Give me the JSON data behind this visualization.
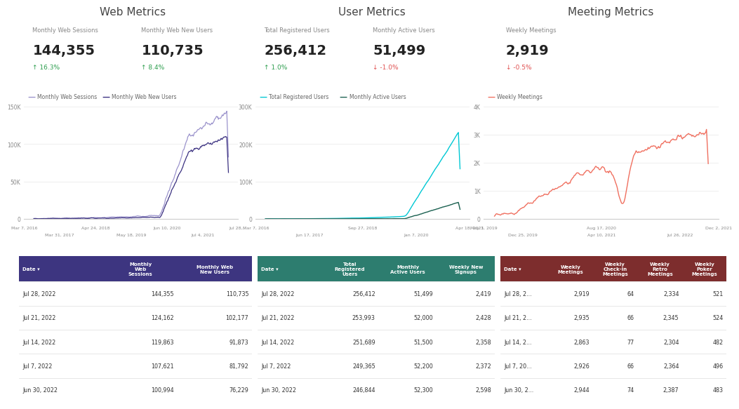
{
  "bg_color": "#ffffff",
  "section_titles": [
    "Web Metrics",
    "User Metrics",
    "Meeting Metrics"
  ],
  "kpi_cards": [
    {
      "label": "Monthly Web Sessions",
      "value": "144,355",
      "change": "↑ 16.3%",
      "change_color": "#2d9e4e"
    },
    {
      "label": "Monthly Web New Users",
      "value": "110,735",
      "change": "↑ 8.4%",
      "change_color": "#2d9e4e"
    },
    {
      "label": "Total Registered Users",
      "value": "256,412",
      "change": "↑ 1.0%",
      "change_color": "#2d9e4e"
    },
    {
      "label": "Monthly Active Users",
      "value": "51,499",
      "change": "↓ -1.0%",
      "change_color": "#e05050"
    },
    {
      "label": "Weekly Meetings",
      "value": "2,919",
      "change": "↓ -0.5%",
      "change_color": "#e05050"
    }
  ],
  "table1_header_color": "#3d3580",
  "table2_header_color": "#2d7d6f",
  "table3_header_color": "#7d2d2d",
  "table1_headers": [
    "Date ▾",
    "Monthly\nWeb\nSessions",
    "Monthly Web\nNew Users"
  ],
  "table2_headers": [
    "Date ▾",
    "Total\nRegistered\nUsers",
    "Monthly\nActive Users",
    "Weekly New\nSignups"
  ],
  "table3_headers": [
    "Date ▾",
    "Weekly\nMeetings",
    "Weekly\nCheck-In\nMeetings",
    "Weekly\nRetro\nMeetings",
    "Weekly\nPoker\nMeetings"
  ],
  "table1_rows": [
    [
      "Jul 28, 2022",
      "144,355",
      "110,735"
    ],
    [
      "Jul 21, 2022",
      "124,162",
      "102,177"
    ],
    [
      "Jul 14, 2022",
      "119,863",
      "91,873"
    ],
    [
      "Jul 7, 2022",
      "107,621",
      "81,792"
    ],
    [
      "Jun 30, 2022",
      "100,994",
      "76,229"
    ]
  ],
  "table2_rows": [
    [
      "Jul 28, 2022",
      "256,412",
      "51,499",
      "2,419"
    ],
    [
      "Jul 21, 2022",
      "253,993",
      "52,000",
      "2,428"
    ],
    [
      "Jul 14, 2022",
      "251,689",
      "51,500",
      "2,358"
    ],
    [
      "Jul 7, 2022",
      "249,365",
      "52,200",
      "2,372"
    ],
    [
      "Jun 30, 2022",
      "246,844",
      "52,300",
      "2,598"
    ]
  ],
  "table3_rows": [
    [
      "Jul 28, 2...",
      "2,919",
      "64",
      "2,334",
      "521"
    ],
    [
      "Jul 21, 2...",
      "2,935",
      "66",
      "2,345",
      "524"
    ],
    [
      "Jul 14, 2...",
      "2,863",
      "77",
      "2,304",
      "482"
    ],
    [
      "Jul 7, 20...",
      "2,926",
      "66",
      "2,364",
      "496"
    ],
    [
      "Jun 30, 2...",
      "2,944",
      "74",
      "2,387",
      "483"
    ]
  ],
  "line_color_web_sessions": "#9b93cc",
  "line_color_web_new_users": "#3a3080",
  "line_color_total_reg": "#00c8d4",
  "line_color_monthly_active": "#1a6050",
  "line_color_weekly_meetings": "#f07060",
  "chart_xticks1_top": [
    "Mar 7, 2016",
    "Apr 24, 2018",
    "Jun 10, 2020",
    "Jul 28,..."
  ],
  "chart_xticks1_bot": [
    "Mar 31, 2017",
    "May 18, 2019",
    "Jul 4, 2021"
  ],
  "chart_xticks2_top": [
    "Mar 7, 2016",
    "Sep 27, 2018",
    "Apr 18, 2021"
  ],
  "chart_xticks2_bot": [
    "Jun 17, 2017",
    "Jan 7, 2020"
  ],
  "chart_xticks3_top": [
    "May 3, 2019",
    "Aug 17, 2020",
    "Dec 2, 2021"
  ],
  "chart_xticks3_bot": [
    "Dec 25, 2019",
    "Apr 10, 2021",
    "Jul 26, 2022"
  ]
}
